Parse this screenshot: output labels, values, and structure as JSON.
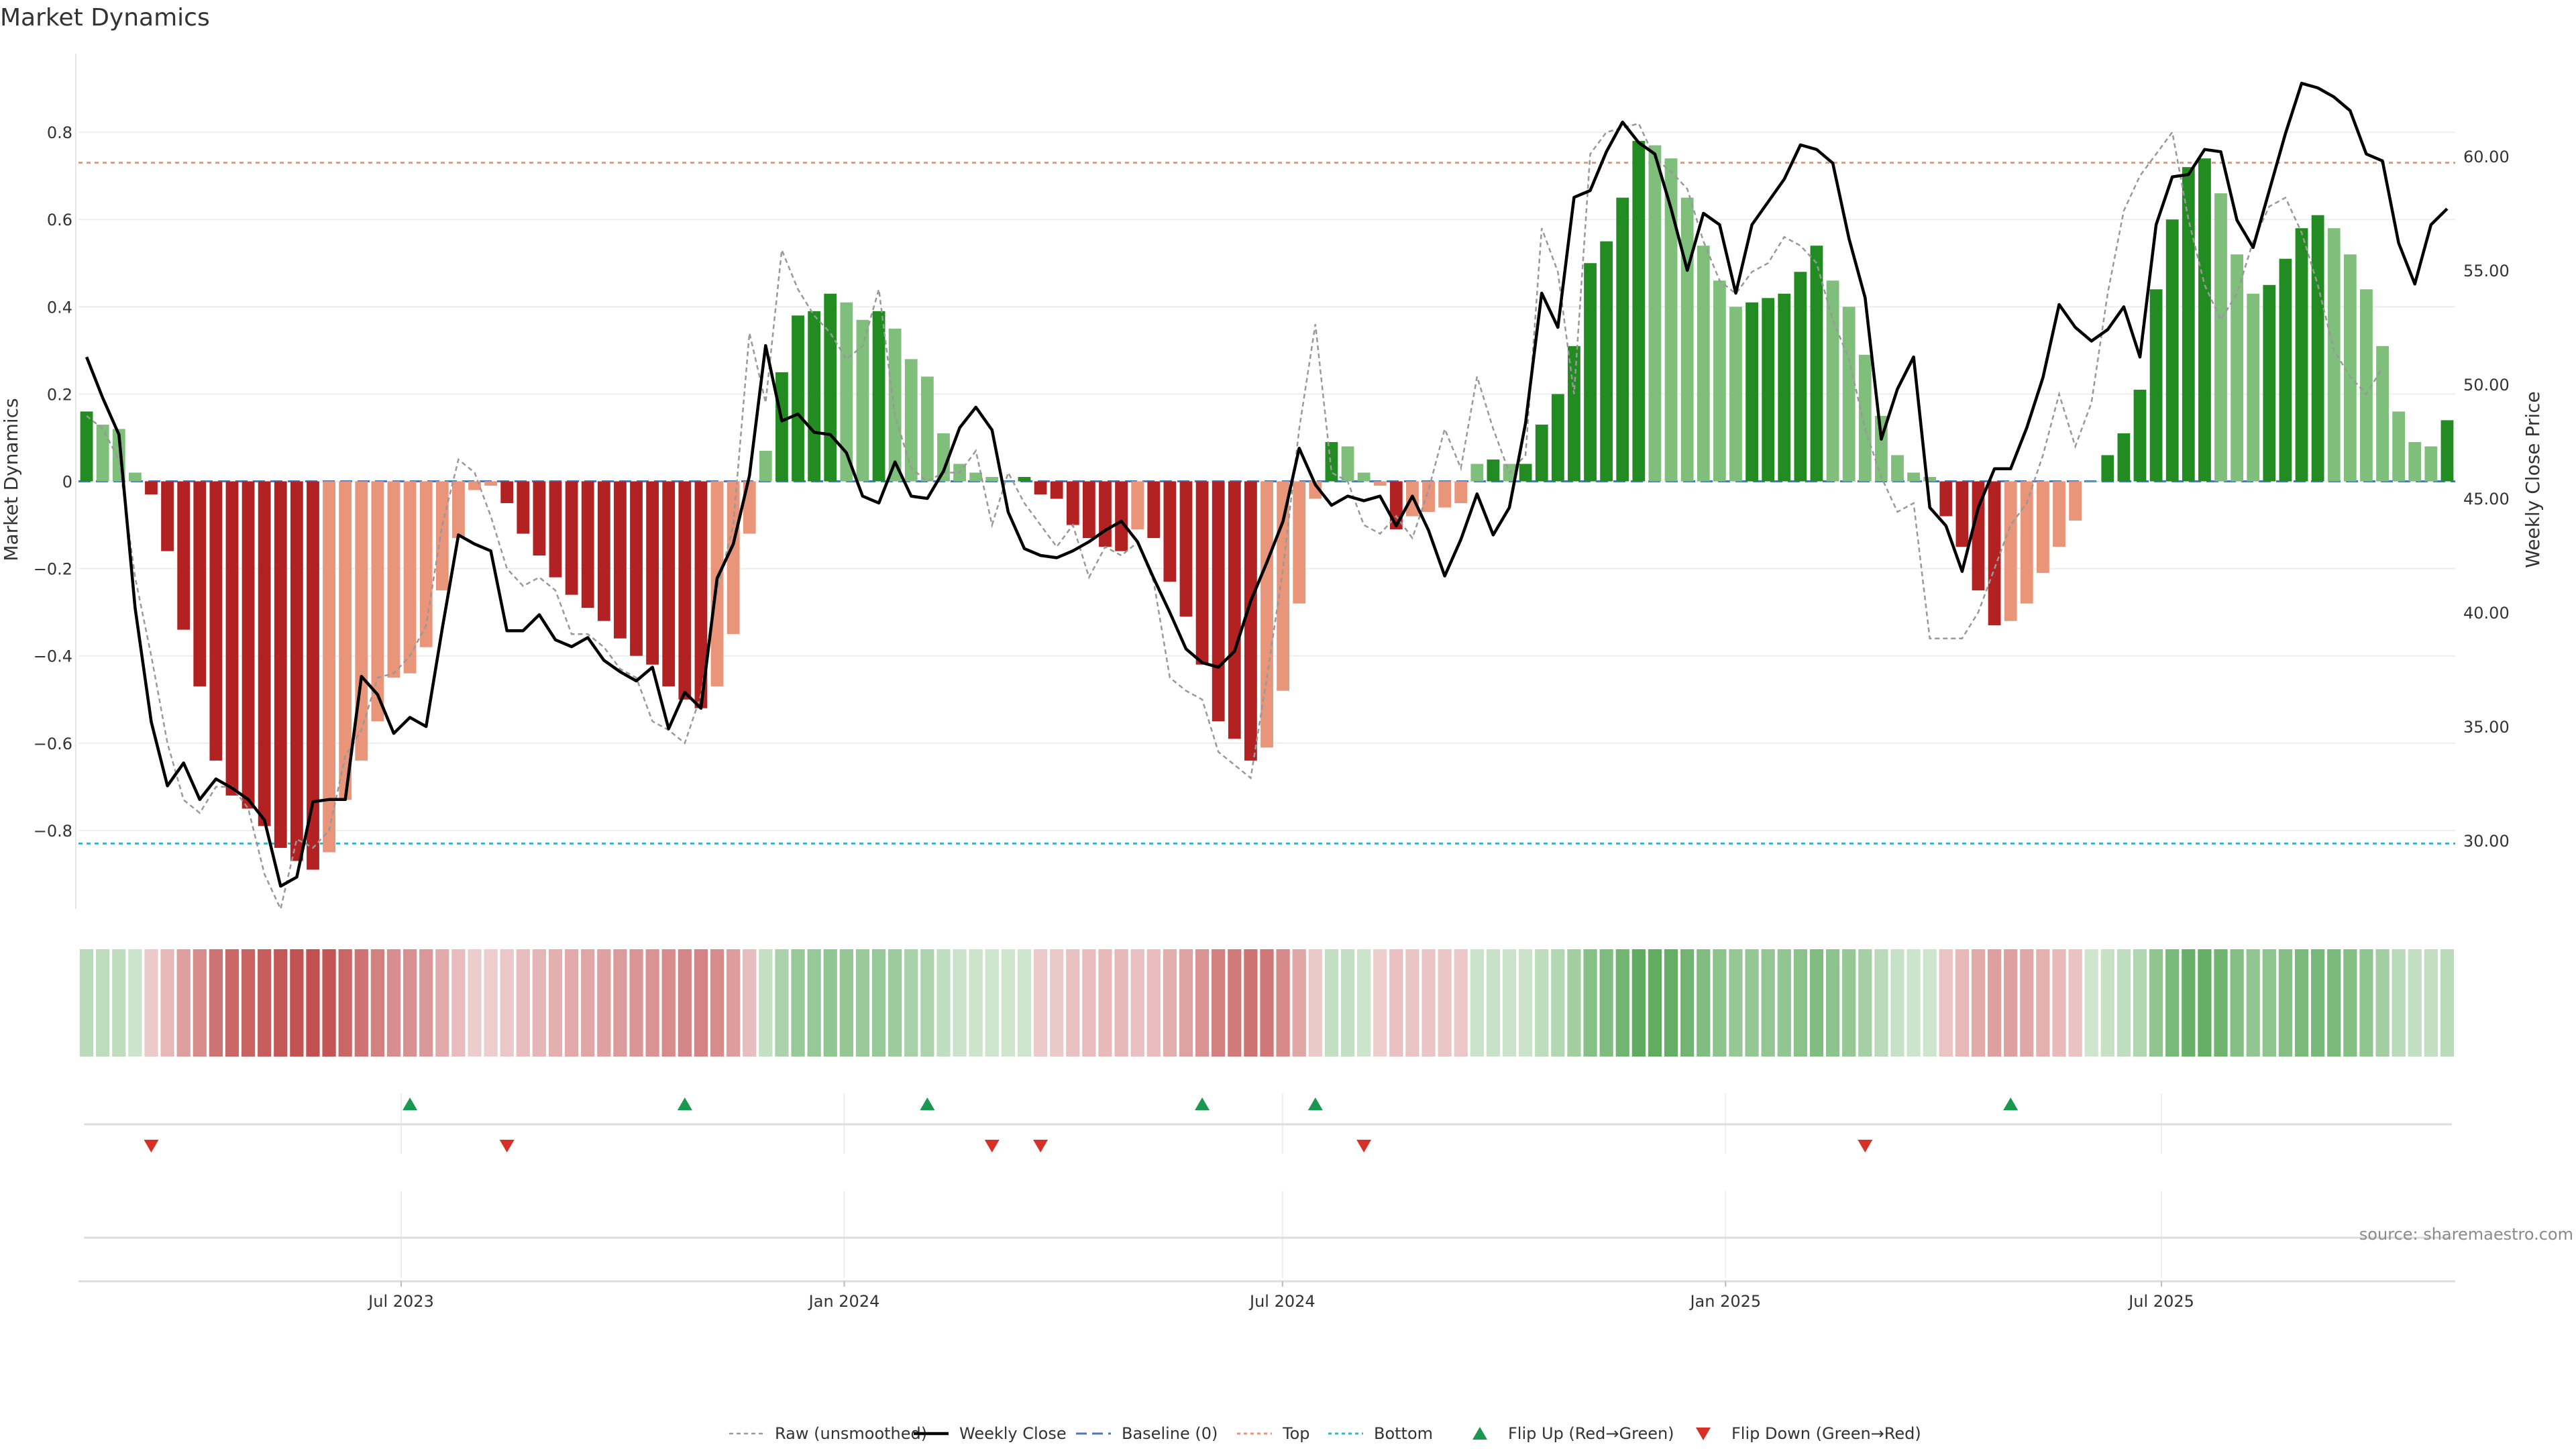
{
  "chart_data": {
    "type": "bar",
    "title": "Market Dynamics",
    "ylabel": "Market Dynamics",
    "y2label": "Weekly Close Price",
    "ylim": [
      -0.98,
      0.98
    ],
    "y2lim": [
      27.0,
      64.5
    ],
    "yticks": [
      "0.8",
      "0.6",
      "0.4",
      "0.2",
      "0",
      "−0.2",
      "−0.4",
      "−0.6",
      "−0.8"
    ],
    "y2ticks": [
      "60.00",
      "55.00",
      "50.00",
      "45.00",
      "40.00",
      "35.00",
      "30.00"
    ],
    "xticks": [
      "Jul 2023",
      "Jan 2024",
      "Jul 2024",
      "Jan 2025",
      "Jul 2025"
    ],
    "x_start": "2023-02-17",
    "x_end": "2025-10-31",
    "thresholds": {
      "top": 0.73,
      "bottom": -0.83,
      "baseline": 0
    },
    "colors": {
      "strong_up": "#228b22",
      "weak_up": "#7fbf7b",
      "strong_down": "#b22222",
      "weak_down": "#e8957a",
      "weekly_close": "#000000",
      "raw": "#999999",
      "baseline": "#4a7ab5",
      "top": "#e8957a",
      "bottom": "#3bb3c3",
      "flip_up": "#1a9850",
      "flip_down": "#d73027"
    },
    "series": [
      {
        "name": "Market Dynamics",
        "values": [
          0.16,
          0.13,
          0.12,
          0.02,
          -0.03,
          -0.16,
          -0.34,
          -0.47,
          -0.64,
          -0.72,
          -0.75,
          -0.79,
          -0.84,
          -0.87,
          -0.89,
          -0.85,
          -0.73,
          -0.64,
          -0.55,
          -0.45,
          -0.44,
          -0.38,
          -0.25,
          -0.13,
          -0.02,
          -0.01,
          -0.05,
          -0.12,
          -0.17,
          -0.22,
          -0.26,
          -0.29,
          -0.32,
          -0.36,
          -0.4,
          -0.42,
          -0.47,
          -0.5,
          -0.52,
          -0.47,
          -0.35,
          -0.12,
          0.07,
          0.25,
          0.38,
          0.39,
          0.43,
          0.41,
          0.37,
          0.39,
          0.35,
          0.28,
          0.24,
          0.11,
          0.04,
          0.02,
          0.01,
          0.0,
          0.01,
          -0.03,
          -0.04,
          -0.1,
          -0.13,
          -0.15,
          -0.16,
          -0.11,
          -0.13,
          -0.23,
          -0.31,
          -0.42,
          -0.55,
          -0.59,
          -0.64,
          -0.61,
          -0.48,
          -0.28,
          -0.04,
          0.09,
          0.08,
          0.02,
          -0.01,
          -0.11,
          -0.08,
          -0.07,
          -0.06,
          -0.05,
          0.04,
          0.05,
          0.04,
          0.04,
          0.13,
          0.2,
          0.31,
          0.5,
          0.55,
          0.65,
          0.78,
          0.77,
          0.74,
          0.65,
          0.54,
          0.46,
          0.4,
          0.41,
          0.42,
          0.43,
          0.48,
          0.54,
          0.46,
          0.4,
          0.29,
          0.15,
          0.06,
          0.02,
          0.01,
          -0.08,
          -0.15,
          -0.25,
          -0.33,
          -0.32,
          -0.28,
          -0.21,
          -0.15,
          -0.09,
          0.0,
          0.06,
          0.11,
          0.21,
          0.44,
          0.6,
          0.72,
          0.74,
          0.66,
          0.52,
          0.43,
          0.45,
          0.51,
          0.58,
          0.61,
          0.58,
          0.52,
          0.44,
          0.31,
          0.16,
          0.09,
          0.08,
          0.14
        ]
      },
      {
        "name": "Raw (unsmoothed)",
        "values": [
          0.15,
          0.12,
          0.05,
          -0.22,
          -0.4,
          -0.6,
          -0.73,
          -0.76,
          -0.7,
          -0.7,
          -0.75,
          -0.9,
          -0.98,
          -0.82,
          -0.84,
          -0.8,
          -0.63,
          -0.57,
          -0.45,
          -0.44,
          -0.4,
          -0.33,
          -0.1,
          0.05,
          0.02,
          -0.08,
          -0.2,
          -0.24,
          -0.22,
          -0.25,
          -0.35,
          -0.35,
          -0.38,
          -0.43,
          -0.45,
          -0.55,
          -0.57,
          -0.6,
          -0.49,
          -0.25,
          -0.1,
          0.34,
          0.18,
          0.53,
          0.44,
          0.38,
          0.34,
          0.28,
          0.31,
          0.44,
          0.15,
          0.03,
          0.0,
          0.02,
          0.02,
          0.07,
          -0.1,
          0.02,
          -0.05,
          -0.1,
          -0.15,
          -0.1,
          -0.22,
          -0.15,
          -0.17,
          -0.14,
          -0.23,
          -0.45,
          -0.48,
          -0.5,
          -0.62,
          -0.65,
          -0.68,
          -0.45,
          -0.2,
          0.12,
          0.36,
          0.02,
          0.0,
          -0.1,
          -0.12,
          -0.08,
          -0.13,
          -0.02,
          0.12,
          0.03,
          0.24,
          0.12,
          0.02,
          0.06,
          0.58,
          0.48,
          0.2,
          0.75,
          0.8,
          0.81,
          0.82,
          0.74,
          0.71,
          0.67,
          0.55,
          0.46,
          0.43,
          0.48,
          0.5,
          0.56,
          0.54,
          0.5,
          0.37,
          0.28,
          0.12,
          0.01,
          -0.07,
          -0.05,
          -0.36,
          -0.36,
          -0.36,
          -0.3,
          -0.2,
          -0.1,
          -0.05,
          0.06,
          0.2,
          0.08,
          0.18,
          0.43,
          0.62,
          0.7,
          0.75,
          0.8,
          0.6,
          0.45,
          0.37,
          0.43,
          0.55,
          0.63,
          0.65,
          0.57,
          0.45,
          0.3,
          0.24,
          0.2,
          0.26
        ]
      },
      {
        "name": "Weekly Close",
        "values": [
          51.2,
          49.4,
          47.8,
          40.2,
          35.2,
          32.4,
          33.4,
          31.8,
          32.7,
          32.3,
          31.8,
          30.9,
          28.0,
          28.4,
          31.7,
          31.8,
          31.8,
          37.2,
          36.4,
          34.7,
          35.4,
          35.0,
          39.3,
          43.4,
          43.0,
          42.7,
          39.2,
          39.2,
          39.9,
          38.8,
          38.5,
          38.9,
          37.9,
          37.4,
          37.0,
          37.6,
          34.9,
          36.5,
          35.8,
          41.5,
          43.0,
          46.0,
          51.7,
          48.4,
          48.7,
          47.9,
          47.8,
          47.0,
          45.1,
          44.8,
          46.6,
          45.1,
          45.0,
          46.2,
          48.1,
          49.0,
          48.0,
          44.4,
          42.8,
          42.5,
          42.4,
          42.7,
          43.1,
          43.6,
          44.0,
          43.1,
          41.5,
          40.0,
          38.4,
          37.8,
          37.6,
          38.3,
          40.5,
          42.2,
          44.0,
          47.2,
          45.6,
          44.7,
          45.1,
          44.9,
          45.1,
          43.8,
          45.1,
          43.6,
          41.6,
          43.2,
          45.2,
          43.4,
          44.6,
          48.3,
          54.0,
          52.5,
          58.2,
          58.5,
          60.2,
          61.5,
          60.6,
          60.1,
          57.7,
          55.0,
          57.5,
          57.0,
          54.0,
          57.0,
          58.0,
          59.0,
          60.5,
          60.3,
          59.7,
          56.4,
          53.8,
          47.6,
          49.8,
          51.2,
          44.6,
          43.8,
          41.8,
          44.6,
          46.3,
          46.3,
          48.1,
          50.3,
          53.5,
          52.5,
          51.9,
          52.4,
          53.4,
          51.2,
          57.0,
          59.1,
          59.2,
          60.3,
          60.2,
          57.2,
          56.0,
          58.5,
          61.0,
          63.2,
          63.0,
          62.6,
          62.0,
          60.1,
          59.8,
          56.2,
          54.4,
          57.0,
          57.7
        ]
      }
    ],
    "flip_up_weeks": [
      20,
      37,
      52,
      69,
      76,
      119
    ],
    "flip_down_weeks": [
      4,
      26,
      56,
      59,
      79,
      110
    ],
    "legend": [
      "Raw (unsmoothed)",
      "Weekly Close",
      "Baseline (0)",
      "Top",
      "Bottom",
      "Flip Up (Red→Green)",
      "Flip Down (Green→Red)"
    ],
    "source": "source: sharemaestro.com"
  }
}
